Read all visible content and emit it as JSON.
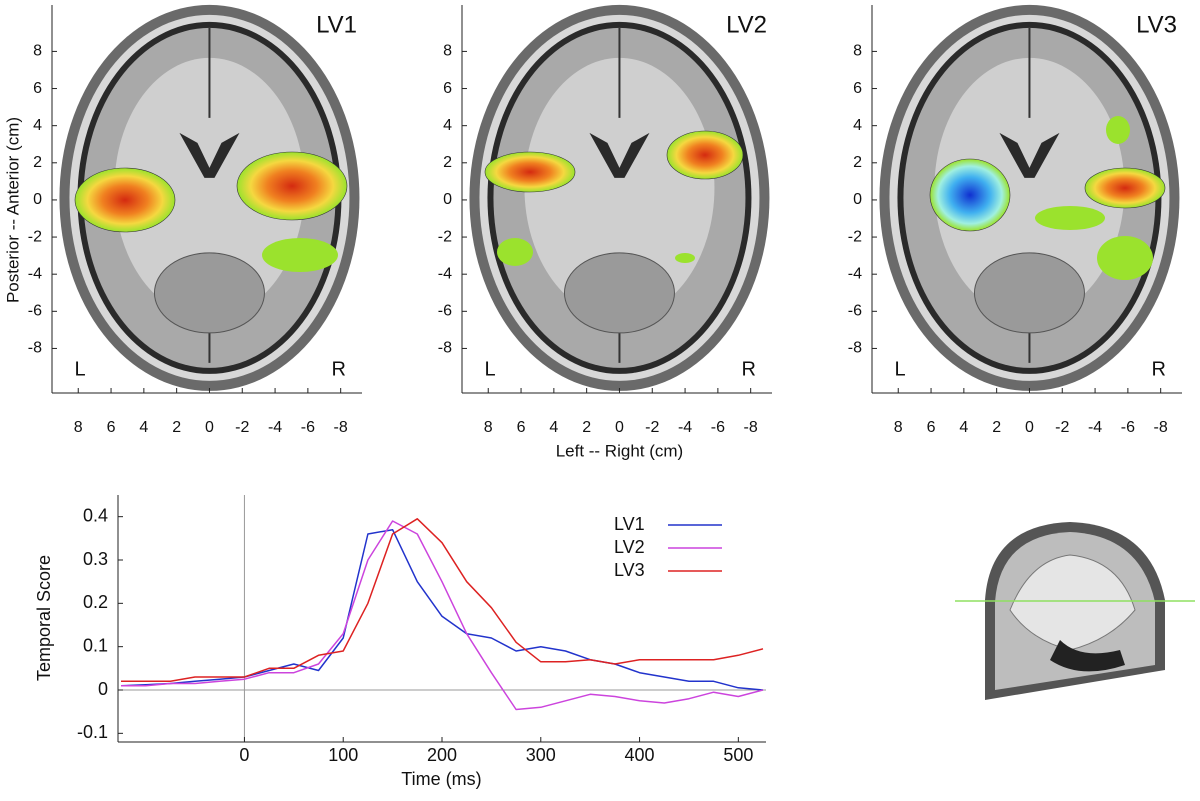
{
  "chart_data": [
    {
      "type": "image-axes",
      "title": "LV1",
      "left_label": "L",
      "right_label": "R",
      "y_label": "Posterior -- Anterior (cm)",
      "xlim": [
        9.6,
        -9.3
      ],
      "ylim": [
        -10.4,
        10.5
      ],
      "xticks": [
        8,
        6,
        4,
        2,
        0,
        -2,
        -4,
        -6,
        -8
      ],
      "yticks": [
        8,
        6,
        4,
        2,
        0,
        -2,
        -4,
        -6,
        -8
      ]
    },
    {
      "type": "image-axes",
      "title": "LV2",
      "left_label": "L",
      "right_label": "R",
      "x_label": "Left -- Right (cm)",
      "xlim": [
        9.6,
        -9.3
      ],
      "ylim": [
        -10.4,
        10.5
      ],
      "xticks": [
        8,
        6,
        4,
        2,
        0,
        -2,
        -4,
        -6,
        -8
      ],
      "yticks": [
        8,
        6,
        4,
        2,
        0,
        -2,
        -4,
        -6,
        -8
      ]
    },
    {
      "type": "image-axes",
      "title": "LV3",
      "left_label": "L",
      "right_label": "R",
      "xlim": [
        9.6,
        -9.3
      ],
      "ylim": [
        -10.4,
        10.5
      ],
      "xticks": [
        8,
        6,
        4,
        2,
        0,
        -2,
        -4,
        -6,
        -8
      ],
      "yticks": [
        8,
        6,
        4,
        2,
        0,
        -2,
        -4,
        -6,
        -8
      ]
    },
    {
      "type": "line",
      "x_label": "Time (ms)",
      "y_label": "Temporal Score",
      "xlim": [
        -128,
        528
      ],
      "ylim": [
        -0.12,
        0.45
      ],
      "xticks": [
        0,
        100,
        200,
        300,
        400,
        500
      ],
      "yticks": [
        -0.1,
        0,
        0.1,
        0.2,
        0.3,
        0.4
      ],
      "x": [
        -125,
        -100,
        -75,
        -50,
        -25,
        0,
        25,
        50,
        75,
        100,
        125,
        150,
        175,
        200,
        225,
        250,
        275,
        300,
        325,
        350,
        375,
        400,
        425,
        450,
        475,
        500,
        525
      ],
      "series": [
        {
          "name": "LV1",
          "color": "#2233cc",
          "values": [
            0.01,
            0.012,
            0.015,
            0.02,
            0.025,
            0.03,
            0.045,
            0.06,
            0.045,
            0.12,
            0.36,
            0.37,
            0.25,
            0.17,
            0.13,
            0.12,
            0.09,
            0.1,
            0.09,
            0.07,
            0.06,
            0.04,
            0.03,
            0.02,
            0.02,
            0.005,
            0
          ]
        },
        {
          "name": "LV2",
          "color": "#cc44dd",
          "values": [
            0.01,
            0.01,
            0.015,
            0.015,
            0.02,
            0.025,
            0.04,
            0.04,
            0.06,
            0.13,
            0.3,
            0.39,
            0.36,
            0.25,
            0.13,
            0.04,
            -0.045,
            -0.04,
            -0.025,
            -0.01,
            -0.015,
            -0.025,
            -0.03,
            -0.02,
            -0.005,
            -0.015,
            0
          ]
        },
        {
          "name": "LV3",
          "color": "#dd2222",
          "values": [
            0.02,
            0.02,
            0.02,
            0.03,
            0.03,
            0.03,
            0.05,
            0.05,
            0.08,
            0.09,
            0.2,
            0.36,
            0.395,
            0.34,
            0.25,
            0.19,
            0.11,
            0.065,
            0.065,
            0.07,
            0.06,
            0.07,
            0.07,
            0.07,
            0.07,
            0.08,
            0.095
          ]
        }
      ]
    }
  ]
}
